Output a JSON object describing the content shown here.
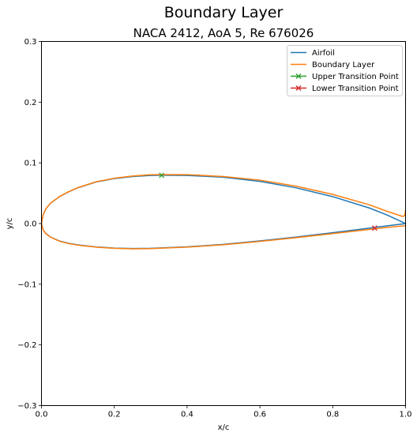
{
  "figure": {
    "suptitle": "Boundary Layer",
    "title": "NACA 2412, AoA 5, Re 676026"
  },
  "chart_data": {
    "type": "line",
    "xlabel": "x/c",
    "ylabel": "y/c",
    "xlim": [
      0,
      1
    ],
    "ylim": [
      -0.3,
      0.3
    ],
    "xticks": [
      "0.0",
      "0.2",
      "0.4",
      "0.6",
      "0.8",
      "1.0"
    ],
    "yticks": [
      "−0.3",
      "−0.2",
      "−0.1",
      "0.0",
      "0.1",
      "0.2",
      "0.3"
    ],
    "grid": false,
    "legend_position": "top-right",
    "series": [
      {
        "name": "Airfoil",
        "color": "#1f77b4",
        "x": [
          1.0,
          0.95,
          0.9,
          0.8,
          0.7,
          0.6,
          0.5,
          0.4,
          0.33,
          0.3,
          0.25,
          0.2,
          0.15,
          0.1,
          0.075,
          0.05,
          0.025,
          0.0125,
          0.005,
          0.0,
          0.005,
          0.0125,
          0.025,
          0.05,
          0.075,
          0.1,
          0.15,
          0.2,
          0.25,
          0.3,
          0.4,
          0.5,
          0.6,
          0.7,
          0.8,
          0.9,
          0.95,
          1.0
        ],
        "y": [
          0.0,
          0.0139,
          0.0257,
          0.0443,
          0.0588,
          0.0695,
          0.0763,
          0.0793,
          0.0795,
          0.0793,
          0.0775,
          0.0741,
          0.0684,
          0.0589,
          0.0523,
          0.0445,
          0.0335,
          0.0246,
          0.015,
          0.0,
          -0.011,
          -0.0166,
          -0.0223,
          -0.0288,
          -0.0327,
          -0.0352,
          -0.0385,
          -0.0405,
          -0.0412,
          -0.0408,
          -0.0384,
          -0.0344,
          -0.0287,
          -0.0222,
          -0.0152,
          -0.0077,
          -0.0037,
          -0.0001
        ]
      },
      {
        "name": "Boundary Layer",
        "color": "#ff7f0e",
        "x": [
          1.0,
          0.998,
          0.995,
          0.99,
          0.95,
          0.9,
          0.8,
          0.7,
          0.6,
          0.5,
          0.4,
          0.33,
          0.3,
          0.25,
          0.2,
          0.15,
          0.1,
          0.075,
          0.05,
          0.025,
          0.0125,
          0.005,
          0.0,
          0.005,
          0.0125,
          0.025,
          0.05,
          0.075,
          0.1,
          0.15,
          0.2,
          0.25,
          0.3,
          0.4,
          0.5,
          0.6,
          0.7,
          0.8,
          0.9,
          0.95,
          1.0
        ],
        "y": [
          0.022,
          0.014,
          0.012,
          0.012,
          0.02,
          0.031,
          0.048,
          0.0615,
          0.0715,
          0.0775,
          0.0805,
          0.0807,
          0.0803,
          0.0782,
          0.0746,
          0.0688,
          0.0592,
          0.0526,
          0.0447,
          0.0336,
          0.0247,
          0.0151,
          0.0,
          -0.0112,
          -0.0168,
          -0.0226,
          -0.0292,
          -0.0331,
          -0.0356,
          -0.0389,
          -0.0409,
          -0.0416,
          -0.0413,
          -0.0389,
          -0.035,
          -0.0294,
          -0.0232,
          -0.0166,
          -0.0098,
          -0.0063,
          -0.0035
        ]
      }
    ],
    "markers": [
      {
        "name": "Upper Transition Point",
        "color": "#2ca02c",
        "x": 0.33,
        "y": 0.0795
      },
      {
        "name": "Lower Transition Point",
        "color": "#d62728",
        "x": 0.915,
        "y": -0.0075
      }
    ]
  }
}
